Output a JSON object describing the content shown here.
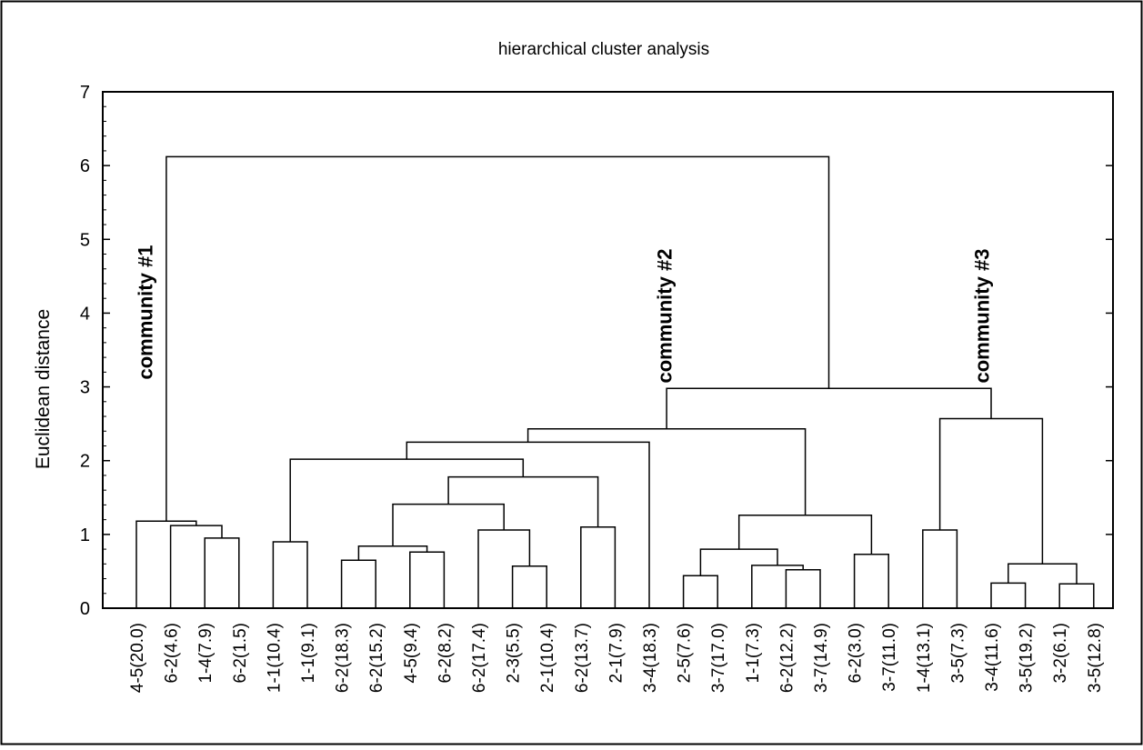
{
  "chart_data": {
    "type": "dendrogram",
    "title": "hierarchical cluster analysis",
    "ylabel": "Euclidean distance",
    "xlabel": "",
    "ylim": [
      0,
      7
    ],
    "yticks": [
      "0",
      "1",
      "2",
      "3",
      "4",
      "5",
      "6",
      "7"
    ],
    "leaves": [
      "4-5(20.0)",
      "6-2(4.6)",
      "1-4(7.9)",
      "6-2(1.5)",
      "1-1(10.4)",
      "1-1(9.1)",
      "6-2(18.3)",
      "6-2(15.2)",
      "4-5(9.4)",
      "6-2(8.2)",
      "6-2(17.4)",
      "2-3(5.5)",
      "2-1(10.4)",
      "6-2(13.7)",
      "2-1(7.9)",
      "3-4(18.3)",
      "2-5(7.6)",
      "3-7(17.0)",
      "1-1(7.3)",
      "6-2(12.2)",
      "3-7(14.9)",
      "6-2(3.0)",
      "3-7(11.0)",
      "1-4(13.1)",
      "3-5(7.3)",
      "3-4(11.6)",
      "3-5(19.2)",
      "3-2(6.1)",
      "3-5(12.8)"
    ],
    "merges": [
      {
        "a": "L2",
        "b": "L3",
        "height": 0.95
      },
      {
        "a": "L1",
        "b": "M0",
        "height": 1.12
      },
      {
        "a": "L0",
        "b": "M1",
        "height": 1.18
      },
      {
        "a": "L4",
        "b": "L5",
        "height": 0.9
      },
      {
        "a": "L6",
        "b": "L7",
        "height": 0.65
      },
      {
        "a": "L8",
        "b": "L9",
        "height": 0.76
      },
      {
        "a": "M4",
        "b": "M5",
        "height": 0.84
      },
      {
        "a": "L11",
        "b": "L12",
        "height": 0.57
      },
      {
        "a": "L10",
        "b": "M7",
        "height": 1.06
      },
      {
        "a": "M6",
        "b": "M8",
        "height": 1.41
      },
      {
        "a": "L13",
        "b": "L14",
        "height": 1.1
      },
      {
        "a": "M9",
        "b": "M10",
        "height": 1.78
      },
      {
        "a": "M3",
        "b": "M11",
        "height": 2.02
      },
      {
        "a": "M12",
        "b": "L15",
        "height": 2.25
      },
      {
        "a": "L16",
        "b": "L17",
        "height": 0.44
      },
      {
        "a": "L19",
        "b": "L20",
        "height": 0.52
      },
      {
        "a": "L18",
        "b": "M15",
        "height": 0.58
      },
      {
        "a": "M14",
        "b": "M16",
        "height": 0.8
      },
      {
        "a": "L21",
        "b": "L22",
        "height": 0.73
      },
      {
        "a": "M17",
        "b": "M18",
        "height": 1.26
      },
      {
        "a": "M13",
        "b": "M19",
        "height": 2.43
      },
      {
        "a": "L23",
        "b": "L24",
        "height": 1.06
      },
      {
        "a": "L25",
        "b": "L26",
        "height": 0.34
      },
      {
        "a": "L27",
        "b": "L28",
        "height": 0.33
      },
      {
        "a": "M22",
        "b": "M23",
        "height": 0.6
      },
      {
        "a": "M21",
        "b": "M24",
        "height": 2.57
      },
      {
        "a": "M20",
        "b": "M25",
        "height": 2.98
      },
      {
        "a": "M2",
        "b": "M26",
        "height": 6.12
      }
    ],
    "annotations": [
      {
        "text": "community #1",
        "x_leaf": 0.47,
        "y": 3.1
      },
      {
        "text": "community #2",
        "x_leaf": 15.65,
        "y": 3.05
      },
      {
        "text": "community #3",
        "x_leaf": 24.93,
        "y": 3.05
      }
    ],
    "grid": false,
    "legend": "none"
  }
}
